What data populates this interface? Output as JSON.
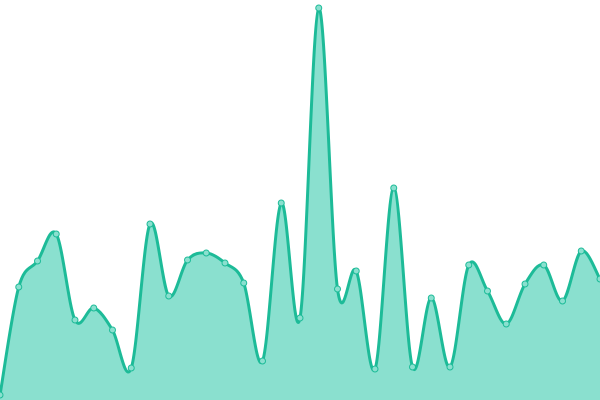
{
  "chart_data": {
    "type": "area",
    "values": [
      5,
      113,
      139,
      166,
      80,
      92,
      70,
      32,
      176,
      104,
      140,
      147,
      137,
      117,
      39,
      197,
      82,
      392,
      111,
      129,
      31,
      212,
      33,
      102,
      33,
      135,
      109,
      76,
      116,
      135,
      99,
      149,
      121
    ],
    "ylim": [
      0,
      400
    ],
    "color": "#1dbb98",
    "fill_color": "#8ae0cf",
    "smooth": true,
    "markers": true
  }
}
